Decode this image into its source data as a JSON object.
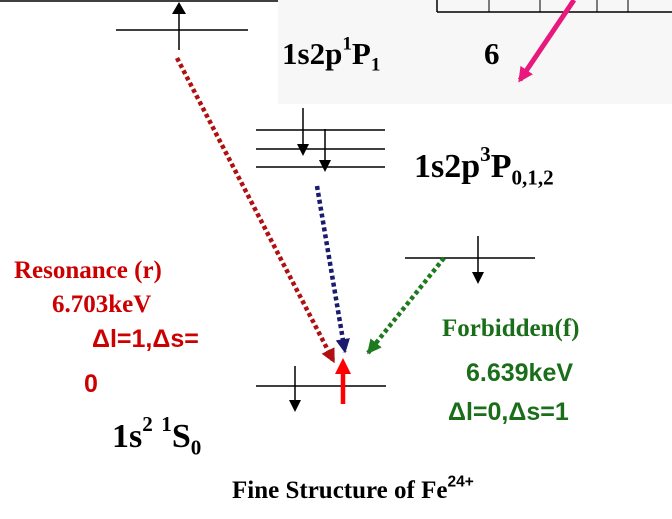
{
  "levels": {
    "singlet_P": {
      "base": "1s2p",
      "sup": "1",
      "mid": "P",
      "sub": "1"
    },
    "triplet_P": {
      "base": "1s2p",
      "sup": "3",
      "mid": "P",
      "sub": "0,1,2"
    },
    "ground": {
      "base": "1s",
      "sup": "2",
      "mid": " ",
      "sup2": "1",
      "mid2": "S",
      "sub": "0"
    }
  },
  "inset_label": "6",
  "resonance": {
    "title": "Resonance (r)",
    "energy": "6.703keV",
    "rule_line1": "Δl=1,Δs=",
    "rule_line2": "0"
  },
  "forbidden": {
    "title": "Forbidden(f)",
    "energy": "6.639keV",
    "rule": "Δl=0,Δs=1"
  },
  "caption": {
    "text": "Fine Structure of Fe",
    "sup": "24+"
  },
  "colors": {
    "resonance": "#cc0000",
    "resonance_arrow": "#b01010",
    "triplet_arrow": "#1a1a6e",
    "forbidden": "#1a6e1a",
    "forbidden_arrow": "#1f7a1f",
    "pink_arrow": "#e8197c",
    "red_up_arrow": "#ff0000"
  }
}
